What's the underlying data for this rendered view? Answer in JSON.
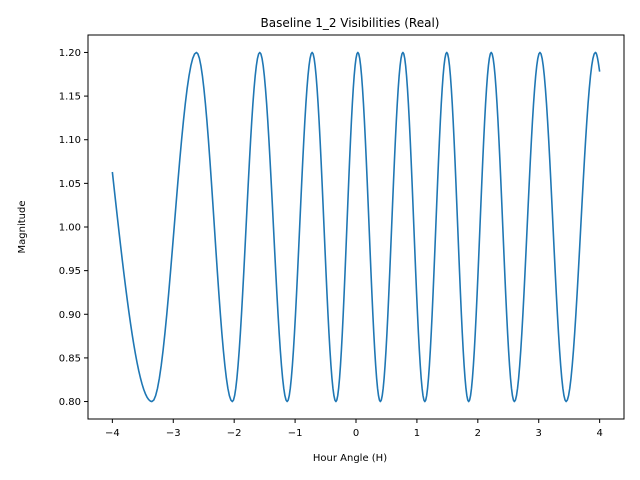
{
  "chart_data": {
    "type": "line",
    "title": "Baseline 1_2 Visibilities (Real)",
    "xlabel": "Hour Angle (H)",
    "ylabel": "Magnitude",
    "xlim": [
      -4.4,
      4.4
    ],
    "ylim": [
      0.78,
      1.22
    ],
    "xticks": [
      "−4",
      "−3",
      "−2",
      "−1",
      "0",
      "1",
      "2",
      "3",
      "4"
    ],
    "yticks": [
      "0.80",
      "0.85",
      "0.90",
      "0.95",
      "1.00",
      "1.05",
      "1.10",
      "1.15",
      "1.20"
    ],
    "grid": false,
    "series": [
      {
        "color": "#1f77b4",
        "x": [
          -4.0,
          -3.35,
          -2.62,
          -2.03,
          -1.58,
          -1.13,
          -0.72,
          -0.33,
          0.03,
          0.4,
          0.77,
          1.13,
          1.49,
          1.85,
          2.22,
          2.6,
          3.02,
          3.45,
          3.93,
          4.0
        ],
        "y": [
          1.063,
          0.8,
          1.2,
          0.8,
          1.2,
          0.8,
          1.2,
          0.8,
          1.2,
          0.8,
          1.2,
          0.8,
          1.2,
          0.8,
          1.2,
          0.8,
          1.2,
          0.8,
          1.2,
          1.178
        ]
      }
    ]
  }
}
